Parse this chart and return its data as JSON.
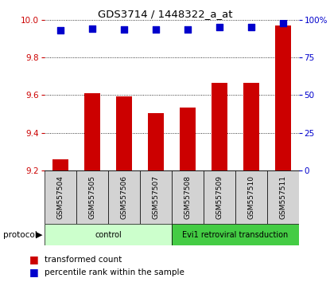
{
  "title": "GDS3714 / 1448322_a_at",
  "samples": [
    "GSM557504",
    "GSM557505",
    "GSM557506",
    "GSM557507",
    "GSM557508",
    "GSM557509",
    "GSM557510",
    "GSM557511"
  ],
  "transformed_counts": [
    9.26,
    9.61,
    9.595,
    9.505,
    9.535,
    9.665,
    9.665,
    9.97
  ],
  "percentile_ranks": [
    93,
    94,
    93.5,
    93.5,
    93.5,
    95,
    95,
    98
  ],
  "ylim_left": [
    9.2,
    10.0
  ],
  "ylim_right": [
    0,
    100
  ],
  "yticks_left": [
    9.2,
    9.4,
    9.6,
    9.8,
    10.0
  ],
  "yticks_right": [
    0,
    25,
    50,
    75,
    100
  ],
  "yticklabels_right": [
    "0",
    "25",
    "50",
    "75",
    "100%"
  ],
  "bar_color": "#cc0000",
  "dot_color": "#0000cc",
  "protocol_groups": [
    {
      "label": "control",
      "start": 0,
      "end": 3,
      "color": "#ccffcc"
    },
    {
      "label": "Evi1 retroviral transduction",
      "start": 4,
      "end": 7,
      "color": "#44cc44"
    }
  ],
  "legend_items": [
    {
      "label": "transformed count",
      "color": "#cc0000"
    },
    {
      "label": "percentile rank within the sample",
      "color": "#0000cc"
    }
  ],
  "sample_bg_color": "#d3d3d3",
  "bar_width": 0.5,
  "dot_size": 30
}
